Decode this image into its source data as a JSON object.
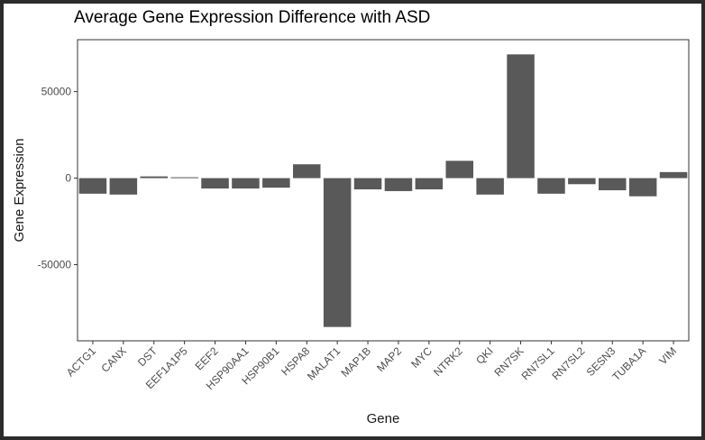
{
  "chart_data": {
    "type": "bar",
    "title": "Average Gene Expression Difference with ASD",
    "xlabel": "Gene",
    "ylabel": "Gene Expression",
    "categories": [
      "ACTG1",
      "CANX",
      "DST",
      "EEF1A1P5",
      "EEF2",
      "HSP90AA1",
      "HSP90B1",
      "HSPA8",
      "MALAT1",
      "MAP1B",
      "MAP2",
      "MYC",
      "NTRK2",
      "QKI",
      "RN7SK",
      "RN7SL1",
      "RN7SL2",
      "SESN3",
      "TUBA1A",
      "VIM"
    ],
    "values": [
      -9000,
      -9500,
      1000,
      500,
      -6000,
      -6000,
      -5500,
      8000,
      -86000,
      -6500,
      -7500,
      -6500,
      10000,
      -9500,
      71500,
      -9000,
      -3500,
      -7000,
      -10500,
      3500
    ],
    "yticks": [
      -50000,
      0,
      50000
    ],
    "yticklabels": [
      "-50000",
      "0",
      "50000"
    ],
    "ylim": [
      -94000,
      80000
    ],
    "grid": false,
    "bar_color": "#595959"
  }
}
